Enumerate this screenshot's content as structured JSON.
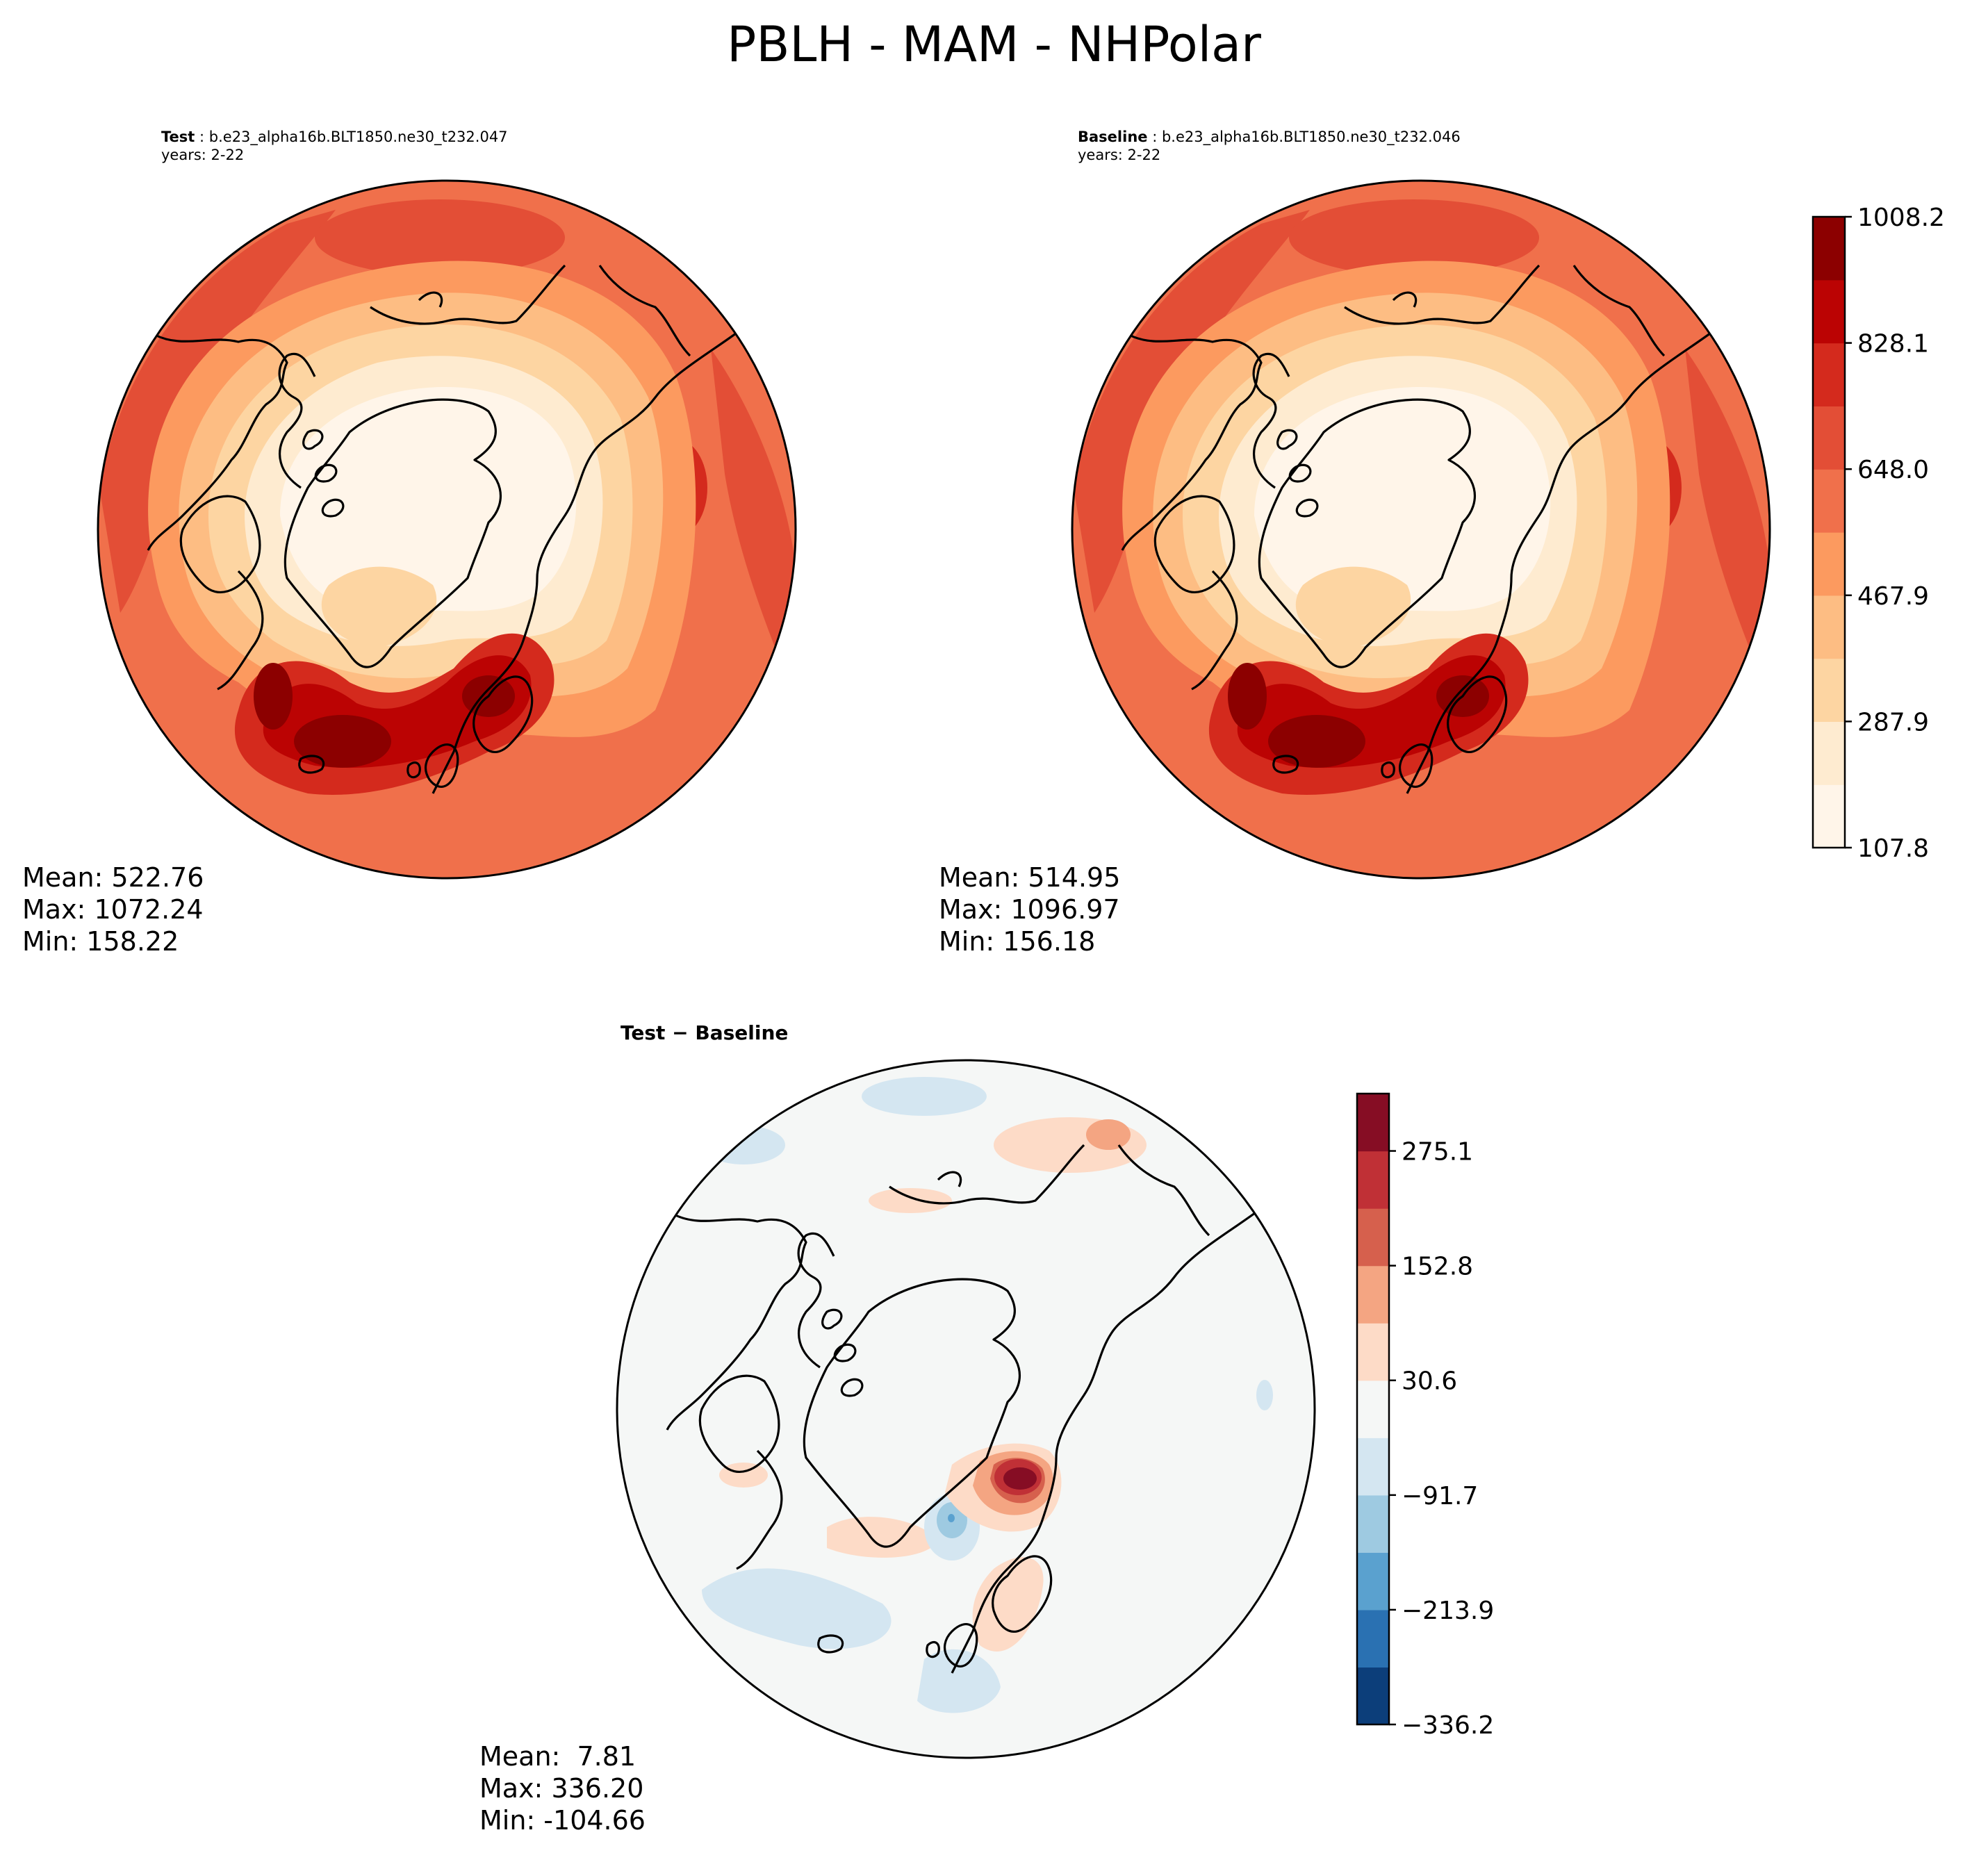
{
  "figure_title": "PBLH - MAM - NHPolar",
  "panels": {
    "test": {
      "label": "Test",
      "case": "b.e23_alpha16b.BLT1850.ne30_t232.047",
      "years": "years: 2-22",
      "mean": "Mean: 522.76",
      "max": "Max: 1072.24",
      "min": "Min: 158.22"
    },
    "baseline": {
      "label": "Baseline",
      "case": "b.e23_alpha16b.BLT1850.ne30_t232.046",
      "years": "years: 2-22",
      "mean": "Mean: 514.95",
      "max": "Max: 1096.97",
      "min": "Min: 156.18"
    },
    "diff": {
      "title": "Test − Baseline",
      "mean": "Mean:  7.81",
      "max": "Max: 336.20",
      "min": "Min: -104.66"
    }
  },
  "colorbars": {
    "main": {
      "colormap": "OrRd",
      "colors": [
        "#fff5e9",
        "#feebd0",
        "#fdd5a2",
        "#fdbd83",
        "#fc9a5f",
        "#f0704b",
        "#e34e36",
        "#d42a1d",
        "#bb0303",
        "#8c0000"
      ],
      "ticks": [
        "1008.2",
        "828.1",
        "648.0",
        "467.9",
        "287.9",
        "107.8"
      ]
    },
    "diff": {
      "colormap": "RdBu_r",
      "colors": [
        "#0c3e7a",
        "#2a71b2",
        "#5aa1cf",
        "#9ecae1",
        "#d4e6f1",
        "#f5f7f6",
        "#fddbc7",
        "#f4a582",
        "#d6604d",
        "#c03036",
        "#860d24"
      ],
      "ticks": [
        "275.1",
        "152.8",
        "30.6",
        "−91.7",
        "−213.9",
        "−336.2"
      ]
    }
  },
  "map": {
    "projection": "North Polar Stereographic",
    "region": "NHPolar",
    "coastlines": true
  }
}
